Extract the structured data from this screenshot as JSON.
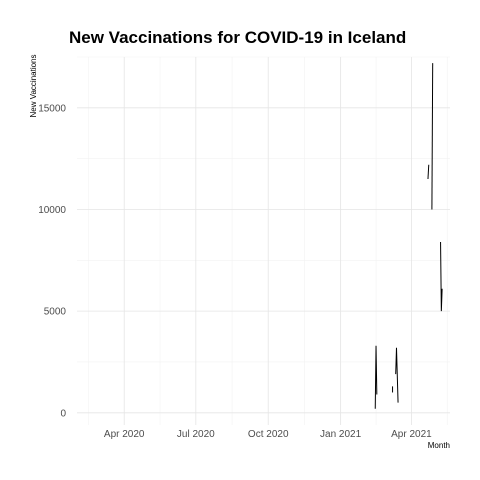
{
  "chart_data": {
    "type": "line",
    "title": "New Vaccinations for COVID-19 in Iceland",
    "xlabel": "Month",
    "ylabel": "New Vaccinations",
    "x_type": "date",
    "xlim": [
      "2020-02-01",
      "2021-05-20"
    ],
    "ylim": [
      -600,
      17500
    ],
    "x_ticks": [
      {
        "date": "2020-04-01",
        "label": "Apr 2020"
      },
      {
        "date": "2020-07-01",
        "label": "Jul 2020"
      },
      {
        "date": "2020-10-01",
        "label": "Oct 2020"
      },
      {
        "date": "2021-01-01",
        "label": "Jan 2021"
      },
      {
        "date": "2021-04-01",
        "label": "Apr 2021"
      }
    ],
    "y_ticks": [
      0,
      5000,
      10000,
      15000
    ],
    "grid": true,
    "series": [
      {
        "segments": [
          [
            [
              "2021-02-14",
              200
            ],
            [
              "2021-02-15",
              3300
            ],
            [
              "2021-02-16",
              900
            ]
          ],
          [
            [
              "2021-03-08",
              1000
            ],
            [
              "2021-03-08",
              1300
            ]
          ],
          [
            [
              "2021-03-12",
              1900
            ],
            [
              "2021-03-13",
              3200
            ],
            [
              "2021-03-15",
              500
            ]
          ],
          [
            [
              "2021-04-22",
              11500
            ],
            [
              "2021-04-23",
              12200
            ]
          ],
          [
            [
              "2021-04-27",
              10000
            ],
            [
              "2021-04-28",
              17200
            ]
          ],
          [
            [
              "2021-05-08",
              8400
            ],
            [
              "2021-05-09",
              5000
            ],
            [
              "2021-05-10",
              6100
            ]
          ]
        ]
      }
    ]
  }
}
